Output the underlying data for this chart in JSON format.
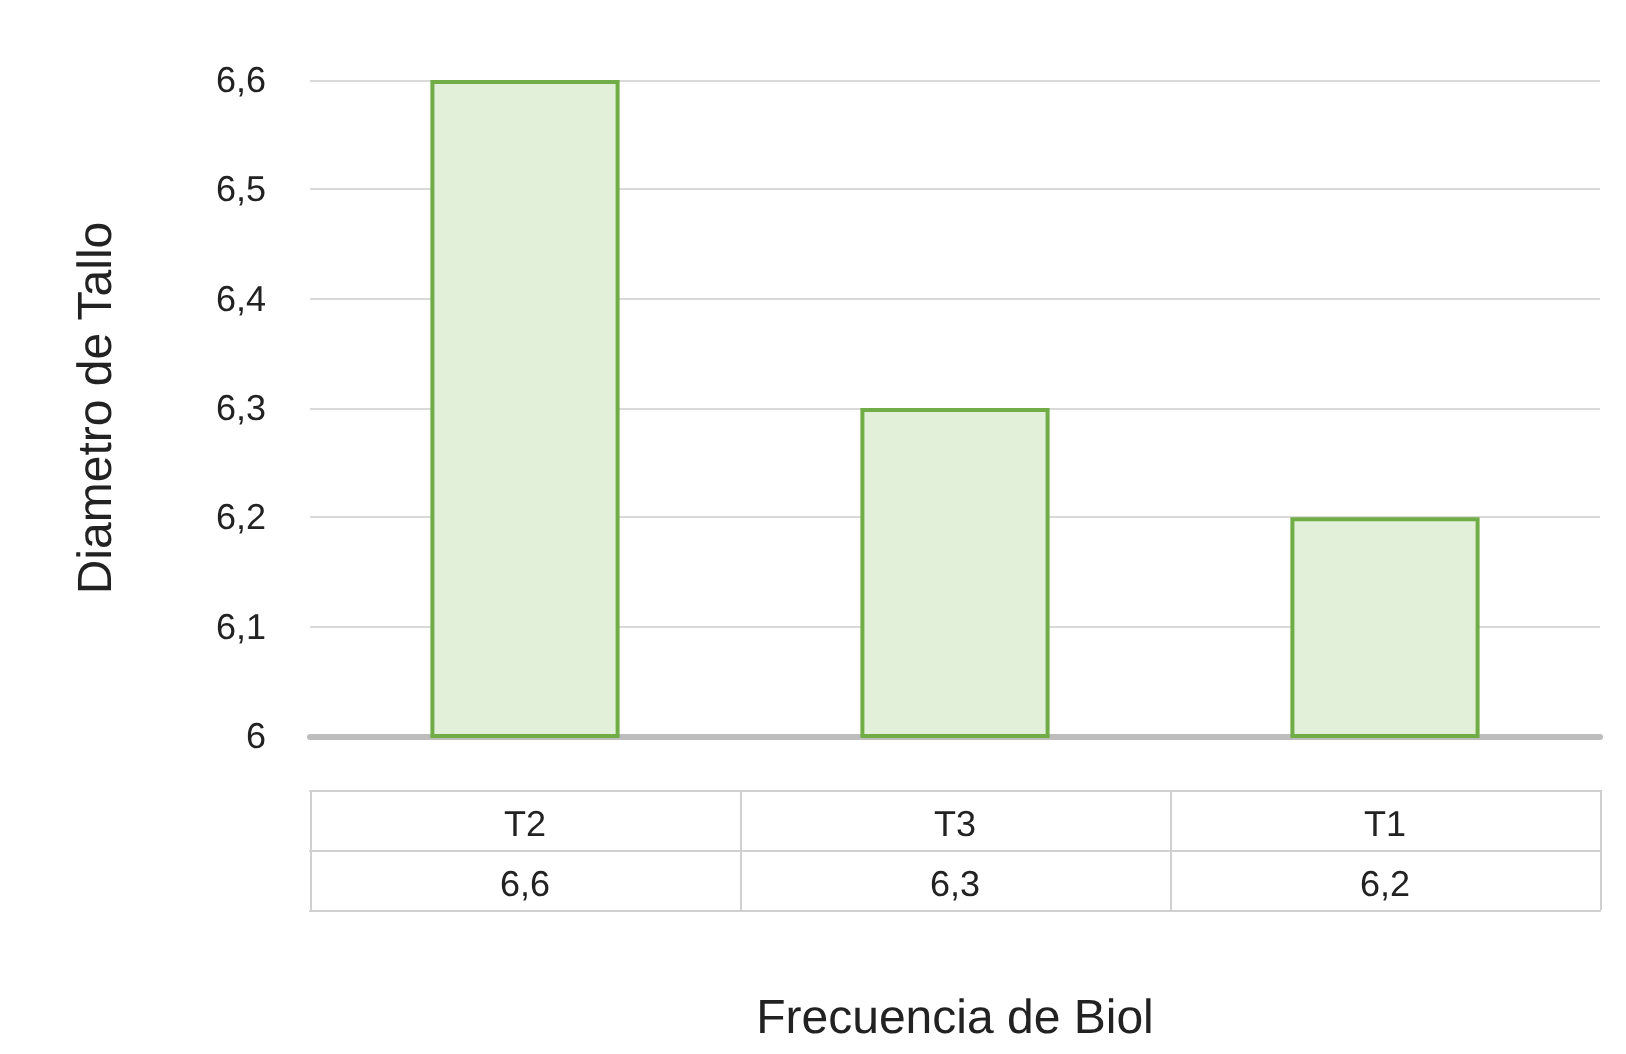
{
  "chart_data": {
    "type": "bar",
    "xlabel": "Frecuencia de Biol",
    "ylabel": "Diametro de Tallo",
    "categories": [
      "T2",
      "T3",
      "T1"
    ],
    "values": [
      6.6,
      6.3,
      6.2
    ],
    "value_labels": [
      "6,6",
      "6,3",
      "6,2"
    ],
    "color": "#e2f0d9",
    "ylim": [
      6,
      6.6
    ],
    "yticks": [
      6,
      {
        "value": 6.1,
        "label": "6,1"
      },
      {
        "value": 6.2,
        "label": "6,2"
      },
      {
        "value": 6.3,
        "label": "6,3"
      },
      {
        "value": 6.4,
        "label": "6,4"
      },
      {
        "value": 6.5,
        "label": "6,5"
      },
      {
        "value": 6.6,
        "label": "6,6"
      }
    ],
    "grid": true
  }
}
